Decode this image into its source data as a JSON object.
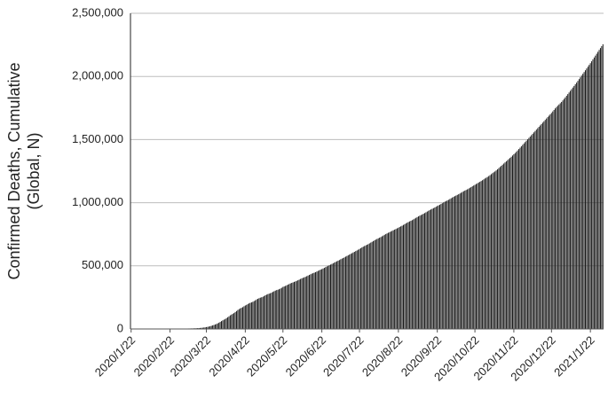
{
  "chart_data": {
    "type": "bar",
    "y_label": [
      "Confirmed Deaths, Cumulative",
      "(Global, N)"
    ],
    "color": "#1a1a1a",
    "grid": true,
    "ylim": [
      0,
      2500000
    ],
    "yticks": [
      0,
      {
        "value": 500000,
        "label": "500,000"
      },
      {
        "value": 1000000,
        "label": "1,000,000"
      },
      {
        "value": 1500000,
        "label": "1,500,000"
      },
      {
        "value": 2000000,
        "label": "2,000,000"
      },
      {
        "value": 2500000,
        "label": "2,500,000"
      }
    ],
    "categories": [
      "2020/1/22",
      null,
      null,
      null,
      null,
      null,
      null,
      null,
      null,
      null,
      null,
      null,
      null,
      null,
      null,
      null,
      null,
      null,
      null,
      null,
      null,
      null,
      null,
      null,
      null,
      null,
      null,
      null,
      null,
      null,
      null,
      "2020/2/22",
      null,
      null,
      null,
      null,
      null,
      null,
      null,
      null,
      null,
      null,
      null,
      null,
      null,
      null,
      null,
      null,
      null,
      null,
      null,
      null,
      null,
      null,
      null,
      null,
      null,
      null,
      null,
      null,
      "2020/3/22",
      null,
      null,
      null,
      null,
      null,
      null,
      null,
      null,
      null,
      null,
      null,
      null,
      null,
      null,
      null,
      null,
      null,
      null,
      null,
      null,
      null,
      null,
      null,
      null,
      null,
      null,
      null,
      null,
      null,
      null,
      "2020/4/22",
      null,
      null,
      null,
      null,
      null,
      null,
      null,
      null,
      null,
      null,
      null,
      null,
      null,
      null,
      null,
      null,
      null,
      null,
      null,
      null,
      null,
      null,
      null,
      null,
      null,
      null,
      null,
      null,
      null,
      "2020/5/22",
      null,
      null,
      null,
      null,
      null,
      null,
      null,
      null,
      null,
      null,
      null,
      null,
      null,
      null,
      null,
      null,
      null,
      null,
      null,
      null,
      null,
      null,
      null,
      null,
      null,
      null,
      null,
      null,
      null,
      null,
      "2020/6/22",
      null,
      null,
      null,
      null,
      null,
      null,
      null,
      null,
      null,
      null,
      null,
      null,
      null,
      null,
      null,
      null,
      null,
      null,
      null,
      null,
      null,
      null,
      null,
      null,
      null,
      null,
      null,
      null,
      null,
      "2020/7/22",
      null,
      null,
      null,
      null,
      null,
      null,
      null,
      null,
      null,
      null,
      null,
      null,
      null,
      null,
      null,
      null,
      null,
      null,
      null,
      null,
      null,
      null,
      null,
      null,
      null,
      null,
      null,
      null,
      null,
      null,
      "2020/8/22",
      null,
      null,
      null,
      null,
      null,
      null,
      null,
      null,
      null,
      null,
      null,
      null,
      null,
      null,
      null,
      null,
      null,
      null,
      null,
      null,
      null,
      null,
      null,
      null,
      null,
      null,
      null,
      null,
      null,
      null,
      "2020/9/22",
      null,
      null,
      null,
      null,
      null,
      null,
      null,
      null,
      null,
      null,
      null,
      null,
      null,
      null,
      null,
      null,
      null,
      null,
      null,
      null,
      null,
      null,
      null,
      null,
      null,
      null,
      null,
      null,
      null,
      "2020/10/22",
      null,
      null,
      null,
      null,
      null,
      null,
      null,
      null,
      null,
      null,
      null,
      null,
      null,
      null,
      null,
      null,
      null,
      null,
      null,
      null,
      null,
      null,
      null,
      null,
      null,
      null,
      null,
      null,
      null,
      null,
      "2020/11/22",
      null,
      null,
      null,
      null,
      null,
      null,
      null,
      null,
      null,
      null,
      null,
      null,
      null,
      null,
      null,
      null,
      null,
      null,
      null,
      null,
      null,
      null,
      null,
      null,
      null,
      null,
      null,
      null,
      null,
      "2020/12/22",
      null,
      null,
      null,
      null,
      null,
      null,
      null,
      null,
      null,
      null,
      null,
      null,
      null,
      null,
      null,
      null,
      null,
      null,
      null,
      null,
      null,
      null,
      null,
      null,
      null,
      null,
      null,
      null,
      null,
      null,
      "2021/1/22",
      null,
      null,
      null,
      null,
      null,
      null,
      null,
      null,
      null,
      null
    ],
    "values": [
      17,
      18,
      26,
      42,
      56,
      82,
      131,
      133,
      171,
      213,
      259,
      362,
      426,
      492,
      564,
      637,
      723,
      812,
      909,
      1017,
      1115,
      1261,
      1383,
      1526,
      1669,
      1775,
      1873,
      2009,
      2126,
      2247,
      2360,
      2460,
      2618,
      2699,
      2763,
      2800,
      2858,
      2923,
      2977,
      3050,
      3117,
      3202,
      3285,
      3387,
      3494,
      3599,
      3827,
      4025,
      4296,
      4628,
      4981,
      5428,
      5833,
      6520,
      7162,
      7979,
      8963,
      10013,
      11425,
      13051,
      14857,
      16667,
      19201,
      21934,
      24961,
      28451,
      31844,
      35456,
      39537,
      44249,
      49769,
      55875,
      62123,
      68127,
      73515,
      79000,
      86000,
      93000,
      100000,
      108000,
      114000,
      120000,
      126000,
      134000,
      142000,
      150000,
      157000,
      163000,
      168000,
      173000,
      180000,
      186000,
      191000,
      197000,
      203000,
      207000,
      211000,
      215000,
      221000,
      227000,
      234000,
      239000,
      244000,
      248000,
      251000,
      255000,
      261000,
      267000,
      272000,
      276000,
      280000,
      283000,
      288000,
      294000,
      299000,
      304000,
      308000,
      311000,
      315000,
      320000,
      326000,
      333000,
      337000,
      341000,
      346000,
      351000,
      356000,
      361000,
      365000,
      369000,
      373000,
      377000,
      381000,
      386000,
      391000,
      396000,
      401000,
      405000,
      409000,
      413000,
      418000,
      423000,
      428000,
      433000,
      438000,
      442000,
      446000,
      450000,
      455000,
      460000,
      465000,
      470000,
      474000,
      479000,
      484000,
      490000,
      495000,
      500000,
      505000,
      510000,
      515000,
      520000,
      526000,
      531000,
      536000,
      541000,
      546000,
      552000,
      557000,
      562000,
      567000,
      573000,
      578000,
      584000,
      589000,
      595000,
      600000,
      606000,
      611000,
      617000,
      622000,
      628000,
      634000,
      640000,
      646000,
      652000,
      657000,
      662000,
      667000,
      672000,
      678000,
      684000,
      690000,
      696000,
      702000,
      708000,
      713000,
      718000,
      723000,
      728000,
      734000,
      740000,
      746000,
      752000,
      757000,
      762000,
      767000,
      772000,
      777000,
      782000,
      787000,
      792000,
      797000,
      802000,
      808000,
      813000,
      818000,
      824000,
      830000,
      836000,
      842000,
      847000,
      852000,
      857000,
      862000,
      868000,
      874000,
      880000,
      886000,
      892000,
      897000,
      902000,
      907000,
      913000,
      918000,
      924000,
      930000,
      936000,
      942000,
      947000,
      952000,
      957000,
      962000,
      968000,
      974000,
      979000,
      984000,
      990000,
      996000,
      1002000,
      1008000,
      1013000,
      1018000,
      1023000,
      1029000,
      1035000,
      1041000,
      1047000,
      1052000,
      1057000,
      1062000,
      1067000,
      1073000,
      1079000,
      1085000,
      1091000,
      1096000,
      1101000,
      1106000,
      1112000,
      1118000,
      1124000,
      1130000,
      1136000,
      1142000,
      1148000,
      1154000,
      1160000,
      1166000,
      1172000,
      1178000,
      1185000,
      1192000,
      1198000,
      1204000,
      1211000,
      1218000,
      1226000,
      1234000,
      1241000,
      1248000,
      1256000,
      1265000,
      1274000,
      1283000,
      1292000,
      1301000,
      1310000,
      1319000,
      1328000,
      1337000,
      1346000,
      1355000,
      1364000,
      1374000,
      1384000,
      1393000,
      1403000,
      1414000,
      1425000,
      1436000,
      1447000,
      1458000,
      1469000,
      1480000,
      1491000,
      1502000,
      1513000,
      1524000,
      1535000,
      1546000,
      1557000,
      1568000,
      1579000,
      1590000,
      1601000,
      1612000,
      1623000,
      1634000,
      1645000,
      1656000,
      1667000,
      1678000,
      1689000,
      1700000,
      1711000,
      1723000,
      1735000,
      1747000,
      1758000,
      1768000,
      1778000,
      1788000,
      1798000,
      1810000,
      1822000,
      1834000,
      1847000,
      1860000,
      1873000,
      1886000,
      1899000,
      1912000,
      1925000,
      1938000,
      1951000,
      1965000,
      1979000,
      1993000,
      2007000,
      2021000,
      2035000,
      2049000,
      2063000,
      2077000,
      2091000,
      2105000,
      2120000,
      2135000,
      2150000,
      2165000,
      2180000,
      2195000,
      2210000,
      2225000,
      2240000,
      2255000
    ]
  }
}
